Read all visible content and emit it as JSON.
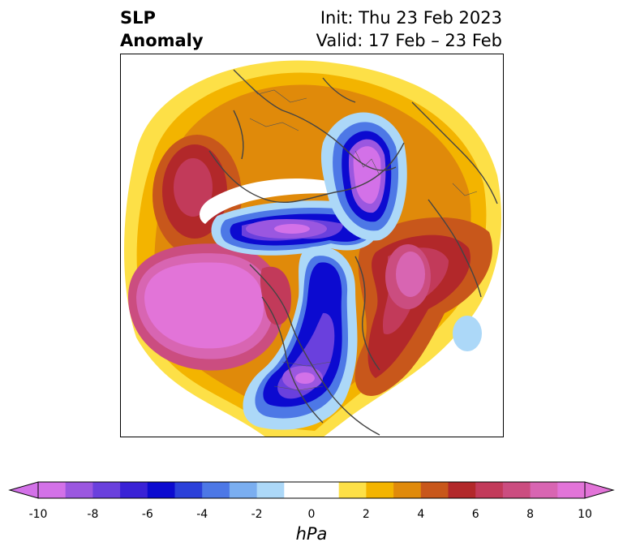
{
  "title": {
    "left_line1": "SLP",
    "left_line2": "Anomaly",
    "right_line1": "Init: Thu 23 Feb 2023",
    "right_line2": "Valid: 17 Feb – 23 Feb"
  },
  "colorbar": {
    "unit": "hPa",
    "min": -10,
    "max": 10,
    "ticks": [
      "-10",
      "-8",
      "-6",
      "-4",
      "-2",
      "0",
      "2",
      "4",
      "6",
      "8",
      "10"
    ],
    "tick_values": [
      -10,
      -8,
      -6,
      -4,
      -2,
      0,
      2,
      4,
      6,
      8,
      10
    ],
    "levels": [
      -10,
      -9,
      -8,
      -7,
      -6,
      -5,
      -4,
      -3,
      -2,
      -1,
      1,
      2,
      3,
      4,
      5,
      6,
      7,
      8,
      9,
      10
    ],
    "colors": [
      "#d371e8",
      "#9b57e0",
      "#6a40dd",
      "#3a22d6",
      "#0c0ad0",
      "#2b40d9",
      "#4d78e6",
      "#7aaef0",
      "#acd8f8",
      "#ffffff",
      "#fde047",
      "#f3b400",
      "#e08a0a",
      "#c8571b",
      "#b2282a",
      "#c23a5a",
      "#cb4d80",
      "#d865b2",
      "#e274d8"
    ],
    "extend_min_color": "#d371e8",
    "extend_max_color": "#e274d8"
  },
  "map": {
    "projection": "polar stereographic (north)",
    "field": "sea level pressure anomaly"
  }
}
